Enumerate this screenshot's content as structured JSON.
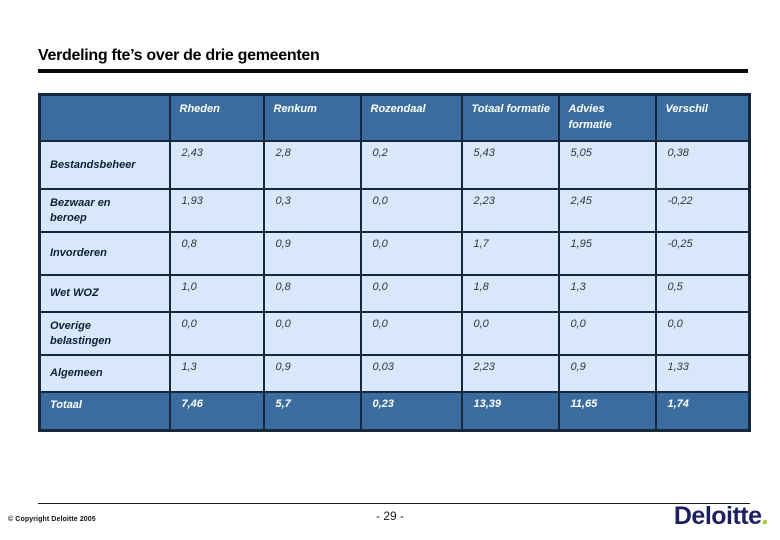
{
  "slide": {
    "title": "Verdeling fte’s over de drie gemeenten",
    "page_number": "- 29 -",
    "copyright": "© Copyright Deloitte 2005",
    "logo_text": "Deloitte",
    "logo_dot": "."
  },
  "colors": {
    "header_bg": "#3a6d9d",
    "cell_bg": "#d8e7f9",
    "border": "#15283d",
    "logo_navy": "#1e1e62",
    "logo_green": "#9bc21b"
  },
  "table": {
    "columns": [
      "",
      "Rheden",
      "Renkum",
      "Rozendaal",
      "Totaal formatie",
      "Advies formatie",
      "Verschil"
    ],
    "rows": [
      {
        "label": "Bestandsbeheer",
        "values": [
          "2,43",
          "2,8",
          "0,2",
          "5,43",
          "5,05",
          "0,38"
        ],
        "size": "tall"
      },
      {
        "label": "Bezwaar en beroep",
        "values": [
          "1,93",
          "0,3",
          "0,0",
          "2,23",
          "2,45",
          "-0,22"
        ],
        "size": "normal"
      },
      {
        "label": "Invorderen",
        "values": [
          "0,8",
          "0,9",
          "0,0",
          "1,7",
          "1,95",
          "-0,25"
        ],
        "size": "normal"
      },
      {
        "label": "Wet WOZ",
        "values": [
          "1,0",
          "0,8",
          "0,0",
          "1,8",
          "1,3",
          "0,5"
        ],
        "size": "short"
      },
      {
        "label": "Overige belastingen",
        "values": [
          "0,0",
          "0,0",
          "0,0",
          "0,0",
          "0,0",
          "0,0"
        ],
        "size": "normal"
      },
      {
        "label": "Algemeen",
        "values": [
          "1,3",
          "0,9",
          "0,03",
          "2,23",
          "0,9",
          "1,33"
        ],
        "size": "short"
      }
    ],
    "total_row": {
      "label": "Totaal",
      "values": [
        "7,46",
        "5,7",
        "0,23",
        "13,39",
        "11,65",
        "1,74"
      ]
    }
  }
}
